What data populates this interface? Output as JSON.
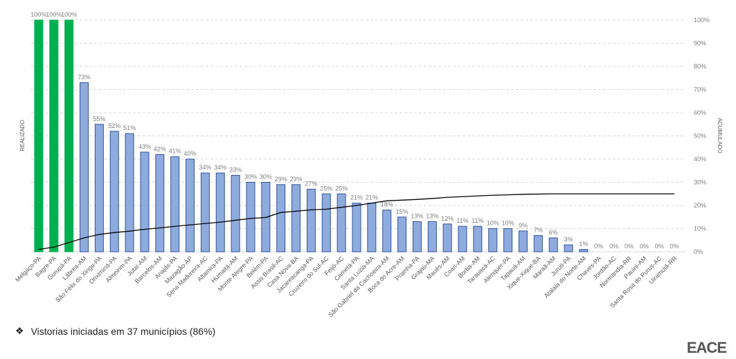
{
  "chart_data": {
    "type": "bar",
    "title": "",
    "ylabel": "REALIZADO",
    "y2label": "ACUMULADO",
    "ylim": [
      0,
      100
    ],
    "y2ticks": [
      "0%",
      "10%",
      "20%",
      "30%",
      "40%",
      "50%",
      "60%",
      "70%",
      "80%",
      "90%",
      "100%"
    ],
    "grid": true,
    "categories": [
      "Melgaço-PA",
      "Bagre-PA",
      "Gurupá-PA",
      "Lábrea-AM",
      "São Félix do Xingu-PA",
      "Oriximiná-PA",
      "Almeirim-PA",
      "Jutaí-AM",
      "Barcelos-AM",
      "Anajás-PA",
      "Mazagão-AP",
      "Sena Madureira-AC",
      "Altamira-PA",
      "Humaitá-AM",
      "Monte Alegre-PA",
      "Belém-PA",
      "Assis Brasil-AC",
      "Casa Nova-BA",
      "Jacareacanga-PA",
      "Cruzeiro do Sul-AC",
      "Feijó-AC",
      "Cametá-PA",
      "Santa Luzia-MA",
      "São Gabriel da Cachoeira-AM",
      "Boca do Acre-AM",
      "Prainha-PA",
      "Grajaú-MA",
      "Maués-AM",
      "Coari-AM",
      "Borba-AM",
      "Tarauacá-AC",
      "Alenquer-PA",
      "Tapauá-AM",
      "Xique-Xique-BA",
      "Maraã-AM",
      "Juruti-PA",
      "Atalaia do Norte-AM",
      "Chaves-PA",
      "Jordão-AC",
      "Normandia-RR",
      "Pauini-AM",
      "Santa Rosa do Purus-AC",
      "Uiramutã-RR"
    ],
    "series": [
      {
        "name": "Realizado",
        "type": "bar",
        "values": [
          100,
          100,
          100,
          73,
          55,
          52,
          51,
          43,
          42,
          41,
          40,
          34,
          34,
          33,
          30,
          30,
          29,
          29,
          27,
          25,
          25,
          21,
          21,
          18,
          15,
          13,
          13,
          12,
          11,
          11,
          10,
          10,
          9,
          7,
          6,
          3,
          1,
          0,
          0,
          0,
          0,
          0,
          0
        ],
        "labels": [
          "100%",
          "100%",
          "100%",
          "73%",
          "55%",
          "52%",
          "51%",
          "43%",
          "42%",
          "41%",
          "40%",
          "34%",
          "34%",
          "33%",
          "30%",
          "30%",
          "29%",
          "29%",
          "27%",
          "25%",
          "25%",
          "21%",
          "21%",
          "18%",
          "15%",
          "13%",
          "13%",
          "12%",
          "11%",
          "11%",
          "10%",
          "10%",
          "9%",
          "7%",
          "6%",
          "3%",
          "1%",
          "0%",
          "0%",
          "0%",
          "0%",
          "0%",
          "0%"
        ]
      },
      {
        "name": "Acumulado",
        "type": "line",
        "values": [
          1,
          2,
          4,
          6,
          7.5,
          8.3,
          8.9,
          9.7,
          10.3,
          11,
          11.6,
          12.2,
          12.8,
          13.6,
          14.4,
          14.8,
          17,
          17.5,
          18.1,
          18.4,
          19.2,
          20,
          21,
          22,
          22.3,
          22.6,
          23,
          23.5,
          23.8,
          24.1,
          24.4,
          24.6,
          24.8,
          24.9,
          25,
          25,
          25,
          25,
          25,
          25,
          25,
          25,
          25
        ]
      }
    ],
    "colors": {
      "highlight": "#00b050",
      "bar": "#8faadc",
      "bar_edge": "#2f5597",
      "line": "#000000",
      "grid": "#d9d9d9",
      "label": "#7f7f7f"
    },
    "highlight_count": 3
  },
  "footer": {
    "bullet_icon": "diamond-bullet-icon",
    "text": "Vistorias iniciadas em 37 municípios (86%)",
    "logo": "EACE"
  }
}
